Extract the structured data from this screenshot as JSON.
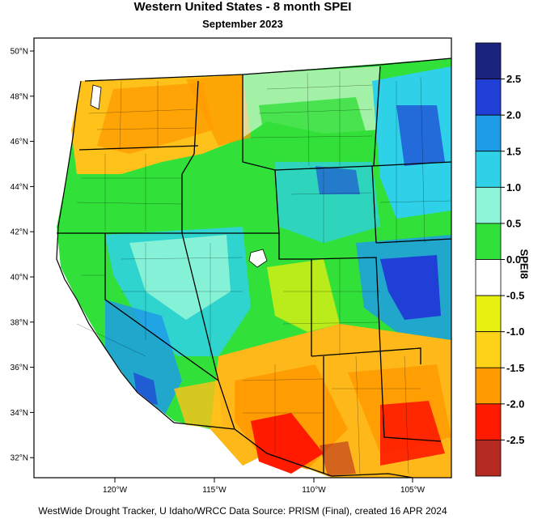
{
  "title": "Western United States - 8 month SPEI",
  "subtitle": "September 2023",
  "footer": "WestWide Drought Tracker, U Idaho/WRCC Data Source: PRISM (Final), created 16 APR 2024",
  "colorbar": {
    "title": "SPEI8",
    "levels": [
      {
        "label": "2.5",
        "color": "#1a237e"
      },
      {
        "label": "2.0",
        "color": "#1f3fd6"
      },
      {
        "label": "1.5",
        "color": "#1e9be6"
      },
      {
        "label": "1.0",
        "color": "#2ed1e8"
      },
      {
        "label": "0.5",
        "color": "#8ff5d8"
      },
      {
        "label": "0.0",
        "color": "#32e03a"
      },
      {
        "label": "-0.5",
        "color": "#ffffff"
      },
      {
        "label": "-1.0",
        "color": "#e8f012"
      },
      {
        "label": "-1.5",
        "color": "#ffd21a"
      },
      {
        "label": "-2.0",
        "color": "#ff9a00"
      },
      {
        "label": "-2.5",
        "color": "#ff1a00"
      },
      {
        "label": "",
        "color": "#b52a20"
      }
    ]
  },
  "latitudes": [
    "50°N",
    "48°N",
    "46°N",
    "44°N",
    "42°N",
    "40°N",
    "38°N",
    "36°N",
    "34°N",
    "32°N"
  ],
  "longitudes": [
    "120°W",
    "115°W",
    "110°W",
    "105°W"
  ],
  "regions": [
    {
      "name": "pacific-northwest",
      "color": "#ffb81a"
    },
    {
      "name": "northern-rockies",
      "color": "#32e03a"
    },
    {
      "name": "great-basin",
      "color": "#2ed1e8"
    },
    {
      "name": "california-coast",
      "color": "#32e03a"
    },
    {
      "name": "colorado-wet",
      "color": "#1f3fd6"
    },
    {
      "name": "southwest-dry",
      "color": "#ff9a00"
    },
    {
      "name": "southwest-extreme",
      "color": "#ff1a00"
    }
  ]
}
